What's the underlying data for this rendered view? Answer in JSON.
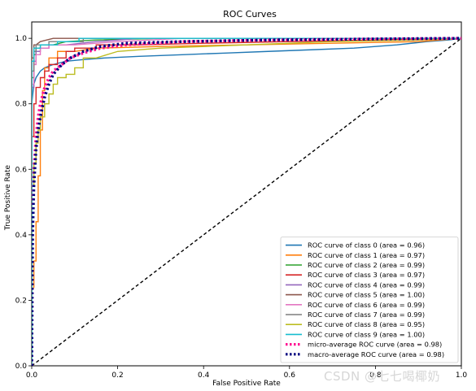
{
  "chart_data": {
    "type": "line",
    "title": "ROC Curves",
    "xlabel": "False Positive Rate",
    "ylabel": "True Positive Rate",
    "xlim": [
      0.0,
      1.0
    ],
    "ylim": [
      0.0,
      1.05
    ],
    "xticks": [
      "0.0",
      "0.2",
      "0.4",
      "0.6",
      "0.8",
      "1.0"
    ],
    "yticks": [
      "0.0",
      "0.2",
      "0.4",
      "0.6",
      "0.8",
      "1.0"
    ],
    "legend_position": "lower right",
    "series": [
      {
        "name": "ROC curve of class 0 (area = 0.96)",
        "color": "#1f77b4",
        "style": "solid",
        "points": [
          [
            0,
            0
          ],
          [
            0,
            0.8
          ],
          [
            0.005,
            0.86
          ],
          [
            0.01,
            0.88
          ],
          [
            0.02,
            0.9
          ],
          [
            0.03,
            0.91
          ],
          [
            0.05,
            0.92
          ],
          [
            0.08,
            0.93
          ],
          [
            0.12,
            0.935
          ],
          [
            0.17,
            0.94
          ],
          [
            0.25,
            0.945
          ],
          [
            0.35,
            0.95
          ],
          [
            0.45,
            0.955
          ],
          [
            0.55,
            0.96
          ],
          [
            0.65,
            0.965
          ],
          [
            0.75,
            0.97
          ],
          [
            0.85,
            0.98
          ],
          [
            0.92,
            0.99
          ],
          [
            0.97,
            0.995
          ],
          [
            1,
            1
          ]
        ]
      },
      {
        "name": "ROC curve of class 1 (area = 0.97)",
        "color": "#ff7f0e",
        "style": "solid",
        "points": [
          [
            0,
            0
          ],
          [
            0,
            0.23
          ],
          [
            0.005,
            0.24
          ],
          [
            0.005,
            0.32
          ],
          [
            0.01,
            0.32
          ],
          [
            0.01,
            0.44
          ],
          [
            0.015,
            0.44
          ],
          [
            0.015,
            0.58
          ],
          [
            0.02,
            0.58
          ],
          [
            0.02,
            0.72
          ],
          [
            0.025,
            0.72
          ],
          [
            0.025,
            0.84
          ],
          [
            0.03,
            0.84
          ],
          [
            0.03,
            0.91
          ],
          [
            0.04,
            0.91
          ],
          [
            0.04,
            0.94
          ],
          [
            0.06,
            0.94
          ],
          [
            0.06,
            0.96
          ],
          [
            0.1,
            0.96
          ],
          [
            0.15,
            0.97
          ],
          [
            0.3,
            0.975
          ],
          [
            0.5,
            0.98
          ],
          [
            0.7,
            0.985
          ],
          [
            0.9,
            0.99
          ],
          [
            1,
            1
          ]
        ]
      },
      {
        "name": "ROC curve of class 2 (area = 0.99)",
        "color": "#2ca02c",
        "style": "solid",
        "points": [
          [
            0,
            0
          ],
          [
            0,
            0.88
          ],
          [
            0.005,
            0.88
          ],
          [
            0.005,
            0.95
          ],
          [
            0.01,
            0.95
          ],
          [
            0.01,
            0.97
          ],
          [
            0.02,
            0.97
          ],
          [
            0.02,
            0.98
          ],
          [
            0.05,
            0.98
          ],
          [
            0.08,
            0.99
          ],
          [
            0.15,
            0.995
          ],
          [
            0.3,
            1.0
          ],
          [
            1,
            1
          ]
        ]
      },
      {
        "name": "ROC curve of class 3 (area = 0.97)",
        "color": "#d62728",
        "style": "solid",
        "points": [
          [
            0,
            0
          ],
          [
            0,
            0.7
          ],
          [
            0.005,
            0.7
          ],
          [
            0.005,
            0.8
          ],
          [
            0.01,
            0.8
          ],
          [
            0.01,
            0.85
          ],
          [
            0.02,
            0.85
          ],
          [
            0.02,
            0.88
          ],
          [
            0.03,
            0.88
          ],
          [
            0.03,
            0.9
          ],
          [
            0.04,
            0.9
          ],
          [
            0.04,
            0.92
          ],
          [
            0.06,
            0.92
          ],
          [
            0.06,
            0.94
          ],
          [
            0.08,
            0.94
          ],
          [
            0.08,
            0.96
          ],
          [
            0.1,
            0.96
          ],
          [
            0.1,
            0.97
          ],
          [
            0.15,
            0.97
          ],
          [
            0.15,
            0.98
          ],
          [
            0.25,
            0.98
          ],
          [
            0.4,
            0.985
          ],
          [
            0.6,
            0.99
          ],
          [
            0.8,
            0.995
          ],
          [
            1,
            1
          ]
        ]
      },
      {
        "name": "ROC curve of class 4 (area = 0.99)",
        "color": "#9467bd",
        "style": "solid",
        "points": [
          [
            0,
            0
          ],
          [
            0,
            0.85
          ],
          [
            0.005,
            0.85
          ],
          [
            0.005,
            0.93
          ],
          [
            0.01,
            0.93
          ],
          [
            0.01,
            0.96
          ],
          [
            0.02,
            0.96
          ],
          [
            0.02,
            0.97
          ],
          [
            0.04,
            0.97
          ],
          [
            0.04,
            0.98
          ],
          [
            0.08,
            0.98
          ],
          [
            0.15,
            0.99
          ],
          [
            0.25,
            1.0
          ],
          [
            1,
            1
          ]
        ]
      },
      {
        "name": "ROC curve of class 5 (area = 1.00)",
        "color": "#8c564b",
        "style": "solid",
        "points": [
          [
            0,
            0
          ],
          [
            0,
            0.94
          ],
          [
            0.005,
            0.94
          ],
          [
            0.005,
            0.98
          ],
          [
            0.01,
            0.98
          ],
          [
            0.02,
            0.99
          ],
          [
            0.05,
            1.0
          ],
          [
            1,
            1
          ]
        ]
      },
      {
        "name": "ROC curve of class 6 (area = 0.99)",
        "color": "#e377c2",
        "style": "solid",
        "points": [
          [
            0,
            0
          ],
          [
            0,
            0.86
          ],
          [
            0.005,
            0.86
          ],
          [
            0.005,
            0.92
          ],
          [
            0.01,
            0.92
          ],
          [
            0.01,
            0.95
          ],
          [
            0.02,
            0.95
          ],
          [
            0.02,
            0.97
          ],
          [
            0.04,
            0.97
          ],
          [
            0.04,
            0.98
          ],
          [
            0.1,
            0.98
          ],
          [
            0.2,
            0.99
          ],
          [
            0.35,
            1.0
          ],
          [
            1,
            1
          ]
        ]
      },
      {
        "name": "ROC curve of class 7 (area = 0.99)",
        "color": "#7f7f7f",
        "style": "solid",
        "points": [
          [
            0,
            0
          ],
          [
            0,
            0.9
          ],
          [
            0.005,
            0.9
          ],
          [
            0.005,
            0.96
          ],
          [
            0.01,
            0.96
          ],
          [
            0.01,
            0.98
          ],
          [
            0.04,
            0.98
          ],
          [
            0.04,
            0.99
          ],
          [
            0.12,
            0.99
          ],
          [
            0.12,
            1.0
          ],
          [
            1,
            1
          ]
        ]
      },
      {
        "name": "ROC curve of class 8 (area = 0.95)",
        "color": "#bcbd22",
        "style": "solid",
        "points": [
          [
            0,
            0
          ],
          [
            0,
            0.55
          ],
          [
            0.005,
            0.55
          ],
          [
            0.005,
            0.62
          ],
          [
            0.01,
            0.62
          ],
          [
            0.01,
            0.68
          ],
          [
            0.015,
            0.68
          ],
          [
            0.015,
            0.72
          ],
          [
            0.02,
            0.72
          ],
          [
            0.02,
            0.76
          ],
          [
            0.03,
            0.76
          ],
          [
            0.03,
            0.8
          ],
          [
            0.04,
            0.8
          ],
          [
            0.04,
            0.83
          ],
          [
            0.05,
            0.83
          ],
          [
            0.05,
            0.86
          ],
          [
            0.06,
            0.86
          ],
          [
            0.06,
            0.88
          ],
          [
            0.08,
            0.88
          ],
          [
            0.08,
            0.89
          ],
          [
            0.1,
            0.89
          ],
          [
            0.1,
            0.91
          ],
          [
            0.12,
            0.91
          ],
          [
            0.12,
            0.94
          ],
          [
            0.15,
            0.94
          ],
          [
            0.2,
            0.96
          ],
          [
            0.3,
            0.97
          ],
          [
            0.5,
            0.98
          ],
          [
            0.7,
            0.99
          ],
          [
            0.9,
            0.995
          ],
          [
            1,
            1
          ]
        ]
      },
      {
        "name": "ROC curve of class 9 (area = 1.00)",
        "color": "#17becf",
        "style": "solid",
        "points": [
          [
            0,
            0
          ],
          [
            0,
            0.93
          ],
          [
            0.005,
            0.93
          ],
          [
            0.005,
            0.97
          ],
          [
            0.02,
            0.97
          ],
          [
            0.02,
            0.98
          ],
          [
            0.06,
            0.98
          ],
          [
            0.06,
            0.99
          ],
          [
            0.11,
            0.99
          ],
          [
            0.11,
            1.0
          ],
          [
            1,
            1
          ]
        ]
      },
      {
        "name": "micro-average ROC curve (area = 0.98)",
        "color": "#ff1493",
        "style": "dotted",
        "points": [
          [
            0,
            0
          ],
          [
            0.002,
            0.45
          ],
          [
            0.005,
            0.6
          ],
          [
            0.01,
            0.7
          ],
          [
            0.015,
            0.76
          ],
          [
            0.02,
            0.8
          ],
          [
            0.03,
            0.85
          ],
          [
            0.04,
            0.88
          ],
          [
            0.05,
            0.9
          ],
          [
            0.07,
            0.92
          ],
          [
            0.09,
            0.94
          ],
          [
            0.12,
            0.955
          ],
          [
            0.16,
            0.97
          ],
          [
            0.22,
            0.98
          ],
          [
            0.35,
            0.99
          ],
          [
            0.55,
            0.995
          ],
          [
            0.8,
            0.998
          ],
          [
            1,
            1
          ]
        ]
      },
      {
        "name": "macro-average ROC curve (area = 0.98)",
        "color": "#000080",
        "style": "dotted",
        "points": [
          [
            0,
            0
          ],
          [
            0.002,
            0.4
          ],
          [
            0.005,
            0.55
          ],
          [
            0.01,
            0.66
          ],
          [
            0.015,
            0.72
          ],
          [
            0.02,
            0.76
          ],
          [
            0.03,
            0.82
          ],
          [
            0.04,
            0.86
          ],
          [
            0.05,
            0.89
          ],
          [
            0.07,
            0.92
          ],
          [
            0.09,
            0.94
          ],
          [
            0.12,
            0.96
          ],
          [
            0.16,
            0.975
          ],
          [
            0.22,
            0.985
          ],
          [
            0.35,
            0.99
          ],
          [
            0.55,
            0.995
          ],
          [
            0.8,
            0.998
          ],
          [
            1,
            1
          ]
        ]
      }
    ],
    "reference_line": {
      "points": [
        [
          0,
          0
        ],
        [
          1,
          1
        ]
      ],
      "color": "#000000",
      "style": "dashed"
    }
  },
  "watermark": "CSDN @七七喝椰奶"
}
